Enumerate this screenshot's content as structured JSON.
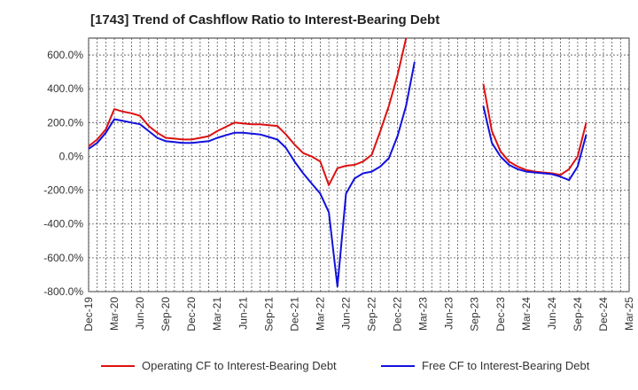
{
  "title": "[1743]  Trend of Cashflow Ratio to Interest-Bearing Debt",
  "chart_data": {
    "type": "line",
    "title": "[1743]  Trend of Cashflow Ratio to Interest-Bearing Debt",
    "xlabel": "",
    "ylabel": "",
    "ylim": [
      -800,
      700
    ],
    "y_ticks": [
      600,
      400,
      200,
      0,
      -200,
      -400,
      -600,
      -800
    ],
    "y_tick_labels": [
      "600.0%",
      "400.0%",
      "200.0%",
      "0.0%",
      "-200.0%",
      "-400.0%",
      "-600.0%",
      "-800.0%"
    ],
    "x_tick_labels": [
      "Dec-19",
      "Mar-20",
      "Jun-20",
      "Sep-20",
      "Dec-20",
      "Mar-21",
      "Jun-21",
      "Sep-21",
      "Dec-21",
      "Mar-22",
      "Jun-22",
      "Sep-22",
      "Dec-22",
      "Mar-23",
      "Jun-23",
      "Sep-23",
      "Dec-23",
      "Mar-24",
      "Jun-24",
      "Sep-24",
      "Dec-24",
      "Mar-25"
    ],
    "grid": true,
    "legend_position": "bottom",
    "series": [
      {
        "name": "Operating CF to Interest-Bearing Debt",
        "color": "#dd1111",
        "values": [
          60,
          100,
          160,
          280,
          265,
          255,
          240,
          180,
          140,
          110,
          105,
          100,
          100,
          110,
          120,
          150,
          175,
          200,
          195,
          190,
          190,
          185,
          180,
          130,
          70,
          20,
          0,
          -30,
          -170,
          -70,
          -55,
          -50,
          -30,
          10,
          150,
          300,
          480,
          700,
          null,
          null,
          null,
          null,
          null,
          null,
          null,
          null,
          430,
          150,
          30,
          -30,
          -60,
          -80,
          -90,
          -95,
          -100,
          -110,
          -75,
          0,
          200
        ]
      },
      {
        "name": "Free CF to Interest-Bearing Debt",
        "color": "#1111dd",
        "values": [
          45,
          80,
          140,
          220,
          210,
          200,
          190,
          150,
          110,
          90,
          85,
          80,
          80,
          85,
          90,
          110,
          125,
          140,
          140,
          135,
          130,
          115,
          100,
          50,
          -30,
          -100,
          -160,
          -220,
          -330,
          -770,
          -220,
          -130,
          -100,
          -90,
          -60,
          -10,
          120,
          300,
          560,
          null,
          null,
          null,
          null,
          null,
          null,
          null,
          300,
          80,
          0,
          -50,
          -75,
          -90,
          -95,
          -100,
          -105,
          -120,
          -140,
          -60,
          130
        ]
      }
    ]
  },
  "legend": {
    "op_label": "Operating CF to Interest-Bearing Debt",
    "free_label": "Free CF to Interest-Bearing Debt"
  }
}
